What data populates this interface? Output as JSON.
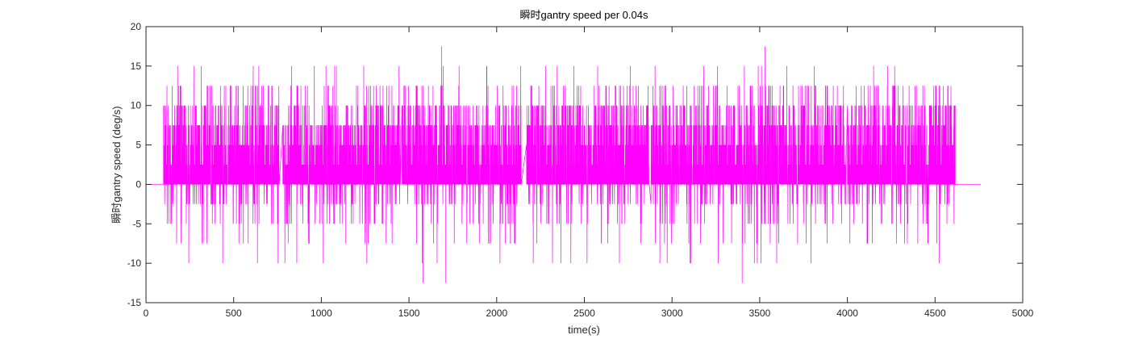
{
  "chart_data": {
    "type": "line",
    "title": "瞬时gantry speed per 0.04s",
    "xlabel": "time(s)",
    "ylabel": "瞬时gantry speed (deg/s)",
    "xlim": [
      0,
      5000
    ],
    "ylim": [
      -15,
      20
    ],
    "xticks": [
      0,
      500,
      1000,
      1500,
      2000,
      2500,
      3000,
      3500,
      4000,
      4500,
      5000
    ],
    "yticks": [
      -15,
      -10,
      -5,
      0,
      5,
      10,
      15,
      20
    ],
    "xtick_labels": [
      "0",
      "500",
      "1000",
      "1500",
      "2000",
      "2500",
      "3000",
      "3500",
      "4000",
      "4500",
      "5000"
    ],
    "ytick_labels": [
      "-15",
      "-10",
      "-5",
      "0",
      "5",
      "10",
      "15",
      "20"
    ],
    "grid": false,
    "legend": "none",
    "series": [
      {
        "color": "#FF00FF",
        "x_range": [
          0,
          4760
        ],
        "levels": [
          -12.5,
          -10,
          -7.5,
          -5,
          -2.5,
          0,
          2.5,
          5,
          7.5,
          10,
          12.5,
          15,
          17.5
        ],
        "key_points": [
          {
            "x": 0,
            "y": 0
          },
          {
            "x": 100,
            "y": 0
          },
          {
            "x": 102,
            "y": 10
          },
          {
            "x": 320,
            "y": -7.5
          },
          {
            "x": 860,
            "y": -10
          },
          {
            "x": 960,
            "y": 15
          },
          {
            "x": 1580,
            "y": -12.5
          },
          {
            "x": 1685,
            "y": 17.5
          },
          {
            "x": 1710,
            "y": -12.5
          },
          {
            "x": 2700,
            "y": -10
          },
          {
            "x": 3260,
            "y": 15
          },
          {
            "x": 3400,
            "y": -12.5
          },
          {
            "x": 3530,
            "y": 17.5
          },
          {
            "x": 4510,
            "y": -7.5
          },
          {
            "x": 4610,
            "y": 5
          },
          {
            "x": 4615,
            "y": 0
          },
          {
            "x": 4760,
            "y": 0
          }
        ]
      }
    ]
  }
}
